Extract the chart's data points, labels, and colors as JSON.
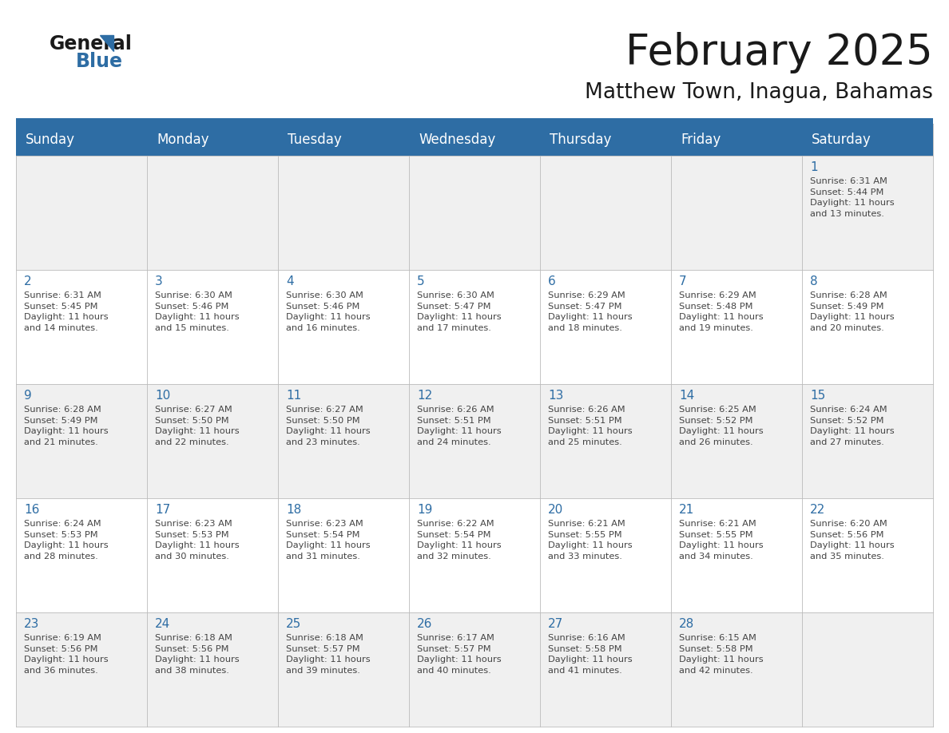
{
  "title": "February 2025",
  "subtitle": "Matthew Town, Inagua, Bahamas",
  "header_bg": "#2E6DA4",
  "header_text_color": "#FFFFFF",
  "cell_bg_light": "#F0F0F0",
  "cell_bg_white": "#FFFFFF",
  "day_number_color": "#2E6DA4",
  "info_text_color": "#444444",
  "separator_line_color": "#2E6DA4",
  "grid_color": "#BBBBBB",
  "days_of_week": [
    "Sunday",
    "Monday",
    "Tuesday",
    "Wednesday",
    "Thursday",
    "Friday",
    "Saturday"
  ],
  "weeks": [
    [
      {
        "day": null,
        "info": null
      },
      {
        "day": null,
        "info": null
      },
      {
        "day": null,
        "info": null
      },
      {
        "day": null,
        "info": null
      },
      {
        "day": null,
        "info": null
      },
      {
        "day": null,
        "info": null
      },
      {
        "day": "1",
        "info": "Sunrise: 6:31 AM\nSunset: 5:44 PM\nDaylight: 11 hours\nand 13 minutes."
      }
    ],
    [
      {
        "day": "2",
        "info": "Sunrise: 6:31 AM\nSunset: 5:45 PM\nDaylight: 11 hours\nand 14 minutes."
      },
      {
        "day": "3",
        "info": "Sunrise: 6:30 AM\nSunset: 5:46 PM\nDaylight: 11 hours\nand 15 minutes."
      },
      {
        "day": "4",
        "info": "Sunrise: 6:30 AM\nSunset: 5:46 PM\nDaylight: 11 hours\nand 16 minutes."
      },
      {
        "day": "5",
        "info": "Sunrise: 6:30 AM\nSunset: 5:47 PM\nDaylight: 11 hours\nand 17 minutes."
      },
      {
        "day": "6",
        "info": "Sunrise: 6:29 AM\nSunset: 5:47 PM\nDaylight: 11 hours\nand 18 minutes."
      },
      {
        "day": "7",
        "info": "Sunrise: 6:29 AM\nSunset: 5:48 PM\nDaylight: 11 hours\nand 19 minutes."
      },
      {
        "day": "8",
        "info": "Sunrise: 6:28 AM\nSunset: 5:49 PM\nDaylight: 11 hours\nand 20 minutes."
      }
    ],
    [
      {
        "day": "9",
        "info": "Sunrise: 6:28 AM\nSunset: 5:49 PM\nDaylight: 11 hours\nand 21 minutes."
      },
      {
        "day": "10",
        "info": "Sunrise: 6:27 AM\nSunset: 5:50 PM\nDaylight: 11 hours\nand 22 minutes."
      },
      {
        "day": "11",
        "info": "Sunrise: 6:27 AM\nSunset: 5:50 PM\nDaylight: 11 hours\nand 23 minutes."
      },
      {
        "day": "12",
        "info": "Sunrise: 6:26 AM\nSunset: 5:51 PM\nDaylight: 11 hours\nand 24 minutes."
      },
      {
        "day": "13",
        "info": "Sunrise: 6:26 AM\nSunset: 5:51 PM\nDaylight: 11 hours\nand 25 minutes."
      },
      {
        "day": "14",
        "info": "Sunrise: 6:25 AM\nSunset: 5:52 PM\nDaylight: 11 hours\nand 26 minutes."
      },
      {
        "day": "15",
        "info": "Sunrise: 6:24 AM\nSunset: 5:52 PM\nDaylight: 11 hours\nand 27 minutes."
      }
    ],
    [
      {
        "day": "16",
        "info": "Sunrise: 6:24 AM\nSunset: 5:53 PM\nDaylight: 11 hours\nand 28 minutes."
      },
      {
        "day": "17",
        "info": "Sunrise: 6:23 AM\nSunset: 5:53 PM\nDaylight: 11 hours\nand 30 minutes."
      },
      {
        "day": "18",
        "info": "Sunrise: 6:23 AM\nSunset: 5:54 PM\nDaylight: 11 hours\nand 31 minutes."
      },
      {
        "day": "19",
        "info": "Sunrise: 6:22 AM\nSunset: 5:54 PM\nDaylight: 11 hours\nand 32 minutes."
      },
      {
        "day": "20",
        "info": "Sunrise: 6:21 AM\nSunset: 5:55 PM\nDaylight: 11 hours\nand 33 minutes."
      },
      {
        "day": "21",
        "info": "Sunrise: 6:21 AM\nSunset: 5:55 PM\nDaylight: 11 hours\nand 34 minutes."
      },
      {
        "day": "22",
        "info": "Sunrise: 6:20 AM\nSunset: 5:56 PM\nDaylight: 11 hours\nand 35 minutes."
      }
    ],
    [
      {
        "day": "23",
        "info": "Sunrise: 6:19 AM\nSunset: 5:56 PM\nDaylight: 11 hours\nand 36 minutes."
      },
      {
        "day": "24",
        "info": "Sunrise: 6:18 AM\nSunset: 5:56 PM\nDaylight: 11 hours\nand 38 minutes."
      },
      {
        "day": "25",
        "info": "Sunrise: 6:18 AM\nSunset: 5:57 PM\nDaylight: 11 hours\nand 39 minutes."
      },
      {
        "day": "26",
        "info": "Sunrise: 6:17 AM\nSunset: 5:57 PM\nDaylight: 11 hours\nand 40 minutes."
      },
      {
        "day": "27",
        "info": "Sunrise: 6:16 AM\nSunset: 5:58 PM\nDaylight: 11 hours\nand 41 minutes."
      },
      {
        "day": "28",
        "info": "Sunrise: 6:15 AM\nSunset: 5:58 PM\nDaylight: 11 hours\nand 42 minutes."
      },
      {
        "day": null,
        "info": null
      }
    ]
  ],
  "title_fontsize": 38,
  "subtitle_fontsize": 19,
  "header_fontsize": 12,
  "day_number_fontsize": 11,
  "info_fontsize": 8.2,
  "logo_general_fontsize": 17,
  "logo_blue_fontsize": 17
}
